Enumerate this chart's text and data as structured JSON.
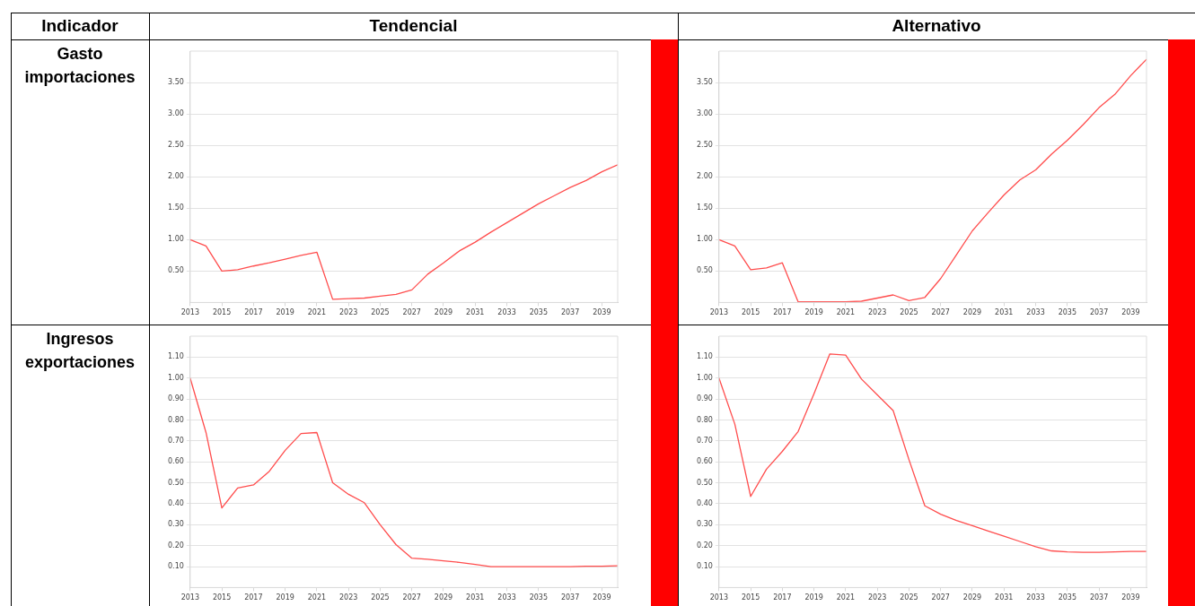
{
  "chart_data": [
    {
      "type": "line",
      "title": "Tendencial",
      "ylabel": "Gasto importaciones",
      "annotations": [
        "Indicador"
      ],
      "x": [
        2013,
        2014,
        2015,
        2016,
        2017,
        2018,
        2019,
        2020,
        2021,
        2022,
        2023,
        2024,
        2025,
        2026,
        2027,
        2028,
        2029,
        2030,
        2031,
        2032,
        2033,
        2034,
        2035,
        2036,
        2037,
        2038,
        2039,
        2040
      ],
      "series": [
        {
          "color": "#ff4d4d",
          "values": [
            1.0,
            0.9,
            0.5,
            0.52,
            0.58,
            0.63,
            0.69,
            0.75,
            0.8,
            0.05,
            0.06,
            0.07,
            0.1,
            0.13,
            0.2,
            0.45,
            0.63,
            0.82,
            0.96,
            1.12,
            1.27,
            1.42,
            1.57,
            1.7,
            1.83,
            1.94,
            2.08,
            2.19
          ]
        }
      ],
      "xlim": [
        2013,
        2040
      ],
      "xticks": [
        2013,
        2015,
        2017,
        2019,
        2021,
        2023,
        2025,
        2027,
        2029,
        2031,
        2033,
        2035,
        2037,
        2039
      ],
      "ylim": [
        0,
        4
      ],
      "yticks": [
        {
          "value": 0.5,
          "label": "0.50"
        },
        {
          "value": 1,
          "label": "1.00"
        },
        {
          "value": 1.5,
          "label": "1.50"
        },
        {
          "value": 2,
          "label": "2.00"
        },
        {
          "value": 2.5,
          "label": "2.50"
        },
        {
          "value": 3,
          "label": "3.00"
        },
        {
          "value": 3.5,
          "label": "3.50"
        }
      ],
      "grid": "y",
      "marker": "none"
    },
    {
      "type": "line",
      "title": "Alternativo",
      "x": [
        2013,
        2014,
        2015,
        2016,
        2017,
        2018,
        2019,
        2020,
        2021,
        2022,
        2023,
        2024,
        2025,
        2026,
        2027,
        2028,
        2029,
        2030,
        2031,
        2032,
        2033,
        2034,
        2035,
        2036,
        2037,
        2038,
        2039,
        2040
      ],
      "series": [
        {
          "color": "#ff4d4d",
          "values": [
            1.0,
            0.9,
            0.52,
            0.55,
            0.63,
            0.01,
            0.01,
            0.01,
            0.01,
            0.02,
            0.07,
            0.12,
            0.03,
            0.08,
            0.38,
            0.76,
            1.14,
            1.43,
            1.71,
            1.95,
            2.11,
            2.36,
            2.58,
            2.83,
            3.1,
            3.31,
            3.61,
            3.87
          ]
        }
      ],
      "xlim": [
        2013,
        2040
      ],
      "xticks": [
        2013,
        2015,
        2017,
        2019,
        2021,
        2023,
        2025,
        2027,
        2029,
        2031,
        2033,
        2035,
        2037,
        2039
      ],
      "ylim": [
        0,
        4
      ],
      "yticks": [
        {
          "value": 0.5,
          "label": "0.50"
        },
        {
          "value": 1,
          "label": "1.00"
        },
        {
          "value": 1.5,
          "label": "1.50"
        },
        {
          "value": 2,
          "label": "2.00"
        },
        {
          "value": 2.5,
          "label": "2.50"
        },
        {
          "value": 3,
          "label": "3.00"
        },
        {
          "value": 3.5,
          "label": "3.50"
        }
      ],
      "grid": "y",
      "marker": "none"
    },
    {
      "type": "line",
      "ylabel": "Ingresos exportaciones",
      "x": [
        2013,
        2014,
        2015,
        2016,
        2017,
        2018,
        2019,
        2020,
        2021,
        2022,
        2023,
        2024,
        2025,
        2026,
        2027,
        2028,
        2029,
        2030,
        2031,
        2032,
        2033,
        2034,
        2035,
        2036,
        2037,
        2038,
        2039,
        2040
      ],
      "series": [
        {
          "color": "#ff4d4d",
          "values": [
            1.0,
            0.74,
            0.38,
            0.475,
            0.49,
            0.555,
            0.655,
            0.735,
            0.74,
            0.5,
            0.445,
            0.405,
            0.3,
            0.205,
            0.14,
            0.135,
            0.127,
            0.12,
            0.11,
            0.1,
            0.1,
            0.1,
            0.1,
            0.1,
            0.1,
            0.102,
            0.102,
            0.104
          ]
        }
      ],
      "xlim": [
        2013,
        2040
      ],
      "xticks": [
        2013,
        2015,
        2017,
        2019,
        2021,
        2023,
        2025,
        2027,
        2029,
        2031,
        2033,
        2035,
        2037,
        2039
      ],
      "ylim": [
        0,
        1.2
      ],
      "yticks": [
        {
          "value": 0.1,
          "label": "0.10"
        },
        {
          "value": 0.2,
          "label": "0.20"
        },
        {
          "value": 0.3,
          "label": "0.30"
        },
        {
          "value": 0.4,
          "label": "0.40"
        },
        {
          "value": 0.5,
          "label": "0.50"
        },
        {
          "value": 0.6,
          "label": "0.60"
        },
        {
          "value": 0.7,
          "label": "0.70"
        },
        {
          "value": 0.8,
          "label": "0.80"
        },
        {
          "value": 0.9,
          "label": "0.90"
        },
        {
          "value": 1,
          "label": "1.00"
        },
        {
          "value": 1.1,
          "label": "1.10"
        }
      ],
      "grid": "y",
      "marker": "none"
    },
    {
      "type": "line",
      "x": [
        2013,
        2014,
        2015,
        2016,
        2017,
        2018,
        2019,
        2020,
        2021,
        2022,
        2023,
        2024,
        2025,
        2026,
        2027,
        2028,
        2029,
        2030,
        2031,
        2032,
        2033,
        2034,
        2035,
        2036,
        2037,
        2038,
        2039,
        2040
      ],
      "series": [
        {
          "color": "#ff4d4d",
          "values": [
            1.0,
            0.78,
            0.435,
            0.565,
            0.65,
            0.745,
            0.925,
            1.115,
            1.11,
            0.995,
            0.92,
            0.845,
            0.61,
            0.39,
            0.35,
            0.32,
            0.295,
            0.27,
            0.245,
            0.22,
            0.195,
            0.175,
            0.17,
            0.168,
            0.168,
            0.17,
            0.172,
            0.172
          ]
        }
      ],
      "xlim": [
        2013,
        2040
      ],
      "xticks": [
        2013,
        2015,
        2017,
        2019,
        2021,
        2023,
        2025,
        2027,
        2029,
        2031,
        2033,
        2035,
        2037,
        2039
      ],
      "ylim": [
        0,
        1.2
      ],
      "yticks": [
        {
          "value": 0.1,
          "label": "0.10"
        },
        {
          "value": 0.2,
          "label": "0.20"
        },
        {
          "value": 0.3,
          "label": "0.30"
        },
        {
          "value": 0.4,
          "label": "0.40"
        },
        {
          "value": 0.5,
          "label": "0.50"
        },
        {
          "value": 0.6,
          "label": "0.60"
        },
        {
          "value": 0.7,
          "label": "0.70"
        },
        {
          "value": 0.8,
          "label": "0.80"
        },
        {
          "value": 0.9,
          "label": "0.90"
        },
        {
          "value": 1,
          "label": "1.00"
        },
        {
          "value": 1.1,
          "label": "1.10"
        }
      ],
      "grid": "y",
      "marker": "none"
    }
  ]
}
